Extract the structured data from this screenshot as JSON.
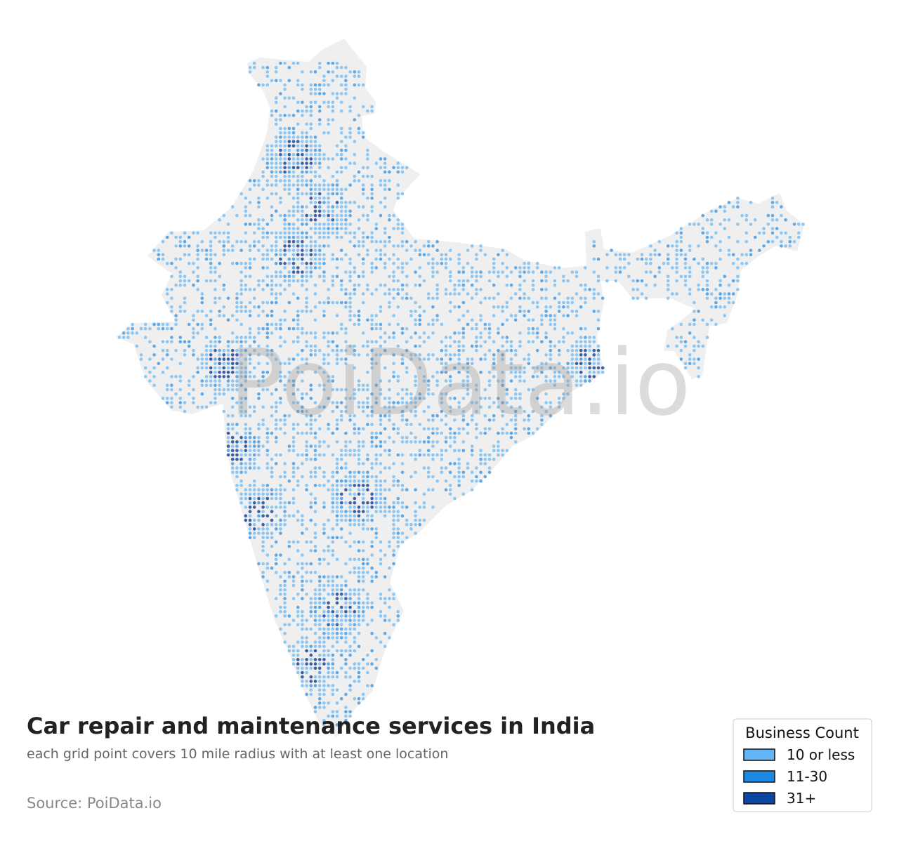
{
  "title": "Car repair and maintenance services in India",
  "subtitle": "each grid point covers 10 mile radius with at least one location",
  "source": "Source: PoiData.io",
  "watermark": "PoiData.io",
  "legend": {
    "title": "Business Count",
    "entries": [
      {
        "label": "10 or less",
        "color": "#64b5f6"
      },
      {
        "label": "11-30",
        "color": "#1e88e5"
      },
      {
        "label": "31+",
        "color": "#0d47a1"
      }
    ]
  }
}
